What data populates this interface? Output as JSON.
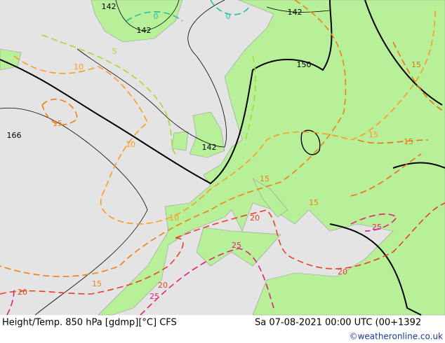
{
  "footer": {
    "title": "Height/Temp. 850 hPa [gdmp][°C] CFS",
    "datetime": "Sa 07-08-2021 00:00 UTC (00+1392",
    "credit": "©weatheronline.co.uk"
  },
  "contour_labels": [
    "142",
    "142",
    "0",
    "0",
    "142",
    "5",
    "150",
    "10",
    "15",
    "166",
    "10",
    "142",
    "15",
    "15",
    "15",
    "15",
    "10",
    "15",
    "20",
    "25",
    "25",
    "20",
    "15",
    "20",
    "25",
    "20"
  ]
}
